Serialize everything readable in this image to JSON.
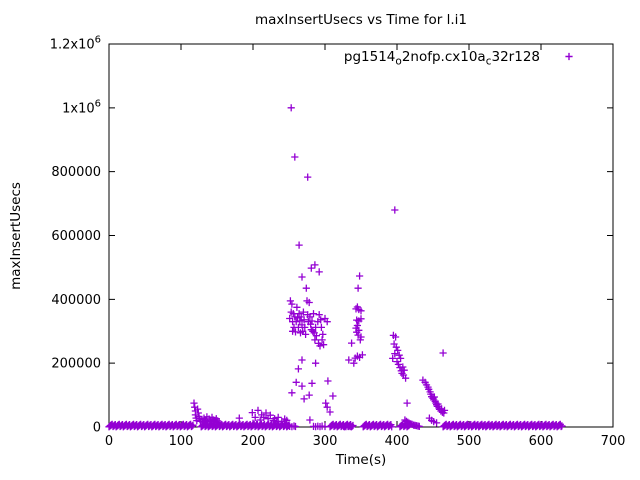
{
  "chart_data": {
    "type": "scatter",
    "title": "maxInsertUsecs vs Time for l.i1",
    "xlabel": "Time(s)",
    "ylabel": "maxInsertUsecs",
    "xlim": [
      0,
      700
    ],
    "ylim": [
      0,
      1200000
    ],
    "grid": false,
    "marker": "+",
    "marker_color": "#9400d3",
    "xticks": [
      0,
      100,
      200,
      300,
      400,
      500,
      600,
      700
    ],
    "yticks": [
      {
        "v": 0,
        "text": "0",
        "sup": ""
      },
      {
        "v": 200000,
        "text": "200000",
        "sup": ""
      },
      {
        "v": 400000,
        "text": "400000",
        "sup": ""
      },
      {
        "v": 600000,
        "text": "600000",
        "sup": ""
      },
      {
        "v": 800000,
        "text": "800000",
        "sup": ""
      },
      {
        "v": 1000000,
        "text": "1x10",
        "sup": "6"
      },
      {
        "v": 1200000,
        "text": "1.2x10",
        "sup": "6"
      }
    ],
    "legend": {
      "position": "top-right",
      "plain_label": "pg1514_o2nofp.cx10a_c32r128",
      "segments": [
        {
          "t": "pg1514"
        },
        {
          "s": "o"
        },
        {
          "t": "2nofp.cx10a"
        },
        {
          "s": "c"
        },
        {
          "t": "32r128"
        }
      ],
      "marker": "+"
    },
    "series": [
      {
        "name": "pg1514_o2nofp.cx10a_c32r128",
        "points": [
          [
            253,
            1000000
          ],
          [
            258,
            846000
          ],
          [
            276,
            783000
          ],
          [
            397,
            680000
          ],
          [
            264,
            570000
          ],
          [
            286,
            508000
          ],
          [
            281,
            498000
          ],
          [
            292,
            486000
          ],
          [
            268,
            470000
          ],
          [
            348,
            473000
          ],
          [
            251,
            340000
          ],
          [
            252,
            395000
          ],
          [
            253,
            360000
          ],
          [
            254,
            385000
          ],
          [
            255,
            330000
          ],
          [
            255,
            300000
          ],
          [
            256,
            355000
          ],
          [
            257,
            312000
          ],
          [
            258,
            345000
          ],
          [
            259,
            298000
          ],
          [
            260,
            330000
          ],
          [
            261,
            375000
          ],
          [
            262,
            342000
          ],
          [
            263,
            312000
          ],
          [
            264,
            355000
          ],
          [
            265,
            332000
          ],
          [
            266,
            295000
          ],
          [
            267,
            345000
          ],
          [
            268,
            320000
          ],
          [
            269,
            300000
          ],
          [
            270,
            360000
          ],
          [
            271,
            336000
          ],
          [
            272,
            312000
          ],
          [
            273,
            290000
          ],
          [
            274,
            435000
          ],
          [
            275,
            395000
          ],
          [
            276,
            352000
          ],
          [
            277,
            330000
          ],
          [
            278,
            390000
          ],
          [
            279,
            345000
          ],
          [
            280,
            322000
          ],
          [
            281,
            305000
          ],
          [
            282,
            332000
          ],
          [
            283,
            300000
          ],
          [
            284,
            355000
          ],
          [
            285,
            295000
          ],
          [
            286,
            273000
          ],
          [
            287,
            312000
          ],
          [
            288,
            286000
          ],
          [
            290,
            330000
          ],
          [
            291,
            262000
          ],
          [
            292,
            352000
          ],
          [
            293,
            254000
          ],
          [
            294,
            336000
          ],
          [
            295,
            312000
          ],
          [
            296,
            273000
          ],
          [
            297,
            290000
          ],
          [
            298,
            258000
          ],
          [
            300,
            340000
          ],
          [
            303,
            330000
          ],
          [
            263,
            182000
          ],
          [
            268,
            210000
          ],
          [
            268,
            128000
          ],
          [
            287,
            200000
          ],
          [
            304,
            144000
          ],
          [
            260,
            140000
          ],
          [
            282,
            137000
          ],
          [
            254,
            107000
          ],
          [
            271,
            88000
          ],
          [
            278,
            100000
          ],
          [
            301,
            75000
          ],
          [
            303,
            62000
          ],
          [
            307,
            47000
          ],
          [
            311,
            97000
          ],
          [
            279,
            22000
          ],
          [
            346,
            435000
          ],
          [
            343,
            370000
          ],
          [
            345,
            376000
          ],
          [
            347,
            368000
          ],
          [
            350,
            364000
          ],
          [
            344,
            335000
          ],
          [
            347,
            332000
          ],
          [
            350,
            339000
          ],
          [
            343,
            310000
          ],
          [
            345,
            318000
          ],
          [
            347,
            303000
          ],
          [
            344,
            297000
          ],
          [
            346,
            288000
          ],
          [
            349,
            273000
          ],
          [
            350,
            282000
          ],
          [
            342,
            216000
          ],
          [
            345,
            222000
          ],
          [
            348,
            218000
          ],
          [
            352,
            226000
          ],
          [
            337,
            263000
          ],
          [
            333,
            210000
          ],
          [
            340,
            200000
          ],
          [
            395,
            287000
          ],
          [
            398,
            282000
          ],
          [
            396,
            260000
          ],
          [
            399,
            250000
          ],
          [
            401,
            240000
          ],
          [
            403,
            225000
          ],
          [
            405,
            215000
          ],
          [
            400,
            205000
          ],
          [
            402,
            196000
          ],
          [
            404,
            186000
          ],
          [
            406,
            176000
          ],
          [
            407,
            168000
          ],
          [
            409,
            163000
          ],
          [
            408,
            188000
          ],
          [
            410,
            178000
          ],
          [
            412,
            153000
          ],
          [
            414,
            75000
          ],
          [
            397,
            230000
          ],
          [
            394,
            215000
          ],
          [
            436,
            147000
          ],
          [
            439,
            140000
          ],
          [
            441,
            132000
          ],
          [
            443,
            125000
          ],
          [
            444,
            118000
          ],
          [
            446,
            110000
          ],
          [
            447,
            103000
          ],
          [
            448,
            95000
          ],
          [
            450,
            90000
          ],
          [
            451,
            85000
          ],
          [
            452,
            94000
          ],
          [
            453,
            80000
          ],
          [
            454,
            75000
          ],
          [
            455,
            70000
          ],
          [
            456,
            65000
          ],
          [
            457,
            72000
          ],
          [
            458,
            60000
          ],
          [
            459,
            55000
          ],
          [
            461,
            50000
          ],
          [
            462,
            57000
          ],
          [
            463,
            46000
          ],
          [
            465,
            44000
          ],
          [
            466,
            52000
          ],
          [
            464,
            232000
          ],
          [
            445,
            28000
          ],
          [
            448,
            21000
          ],
          [
            451,
            17000
          ],
          [
            455,
            13000
          ],
          [
            411,
            22000
          ],
          [
            413,
            18000
          ],
          [
            415,
            15000
          ],
          [
            417,
            12000
          ],
          [
            419,
            10000
          ],
          [
            421,
            8000
          ],
          [
            423,
            6000
          ],
          [
            425,
            5000
          ],
          [
            427,
            4000
          ],
          [
            429,
            3000
          ],
          [
            431,
            2000
          ],
          [
            118,
            75000
          ],
          [
            119,
            62000
          ],
          [
            120,
            50000
          ],
          [
            120,
            38000
          ],
          [
            121,
            28000
          ],
          [
            122,
            20000
          ],
          [
            123,
            56000
          ],
          [
            124,
            44000
          ],
          [
            125,
            33000
          ],
          [
            126,
            25000
          ],
          [
            127,
            18000
          ],
          [
            129,
            24000
          ],
          [
            131,
            15000
          ],
          [
            132,
            28000
          ],
          [
            134,
            20000
          ],
          [
            136,
            32000
          ],
          [
            137,
            16000
          ],
          [
            139,
            25000
          ],
          [
            141,
            18000
          ],
          [
            143,
            30000
          ],
          [
            145,
            22000
          ],
          [
            147,
            15000
          ],
          [
            149,
            26000
          ],
          [
            151,
            19000
          ],
          [
            153,
            14000
          ],
          [
            181,
            28000
          ],
          [
            199,
            45000
          ],
          [
            200,
            12000
          ],
          [
            203,
            30000
          ],
          [
            205,
            9000
          ],
          [
            207,
            52000
          ],
          [
            210,
            22000
          ],
          [
            212,
            38000
          ],
          [
            215,
            30000
          ],
          [
            218,
            44000
          ],
          [
            221,
            26000
          ],
          [
            224,
            37000
          ],
          [
            228,
            20000
          ],
          [
            230,
            26000
          ],
          [
            233,
            17000
          ],
          [
            235,
            30000
          ],
          [
            240,
            18000
          ],
          [
            244,
            25000
          ],
          [
            247,
            21000
          ],
          [
            251,
            2000
          ],
          [
            254,
            1000
          ],
          [
            257,
            3000
          ],
          [
            259,
            1500
          ],
          [
            284,
            2000
          ],
          [
            287,
            1000
          ],
          [
            290,
            2500
          ],
          [
            293,
            1200
          ],
          [
            296,
            2800
          ],
          [
            300,
            1500
          ],
          [
            326,
            2000
          ],
          [
            329,
            1000
          ],
          [
            332,
            2500
          ],
          [
            335,
            1500
          ]
        ]
      }
    ],
    "baseline_segments": [
      {
        "x0": 0,
        "x1": 117,
        "step": 1.1
      },
      {
        "x0": 128,
        "x1": 250,
        "step": 1.1
      },
      {
        "x0": 307,
        "x1": 339,
        "step": 1.1
      },
      {
        "x0": 353,
        "x1": 393,
        "step": 1.1
      },
      {
        "x0": 404,
        "x1": 418,
        "step": 1.1
      },
      {
        "x0": 464,
        "x1": 629,
        "step": 1.1
      }
    ],
    "baseline_band_values": [
      600,
      2600,
      4600,
      6600,
      8600,
      1600,
      3600,
      5600,
      7600
    ]
  }
}
